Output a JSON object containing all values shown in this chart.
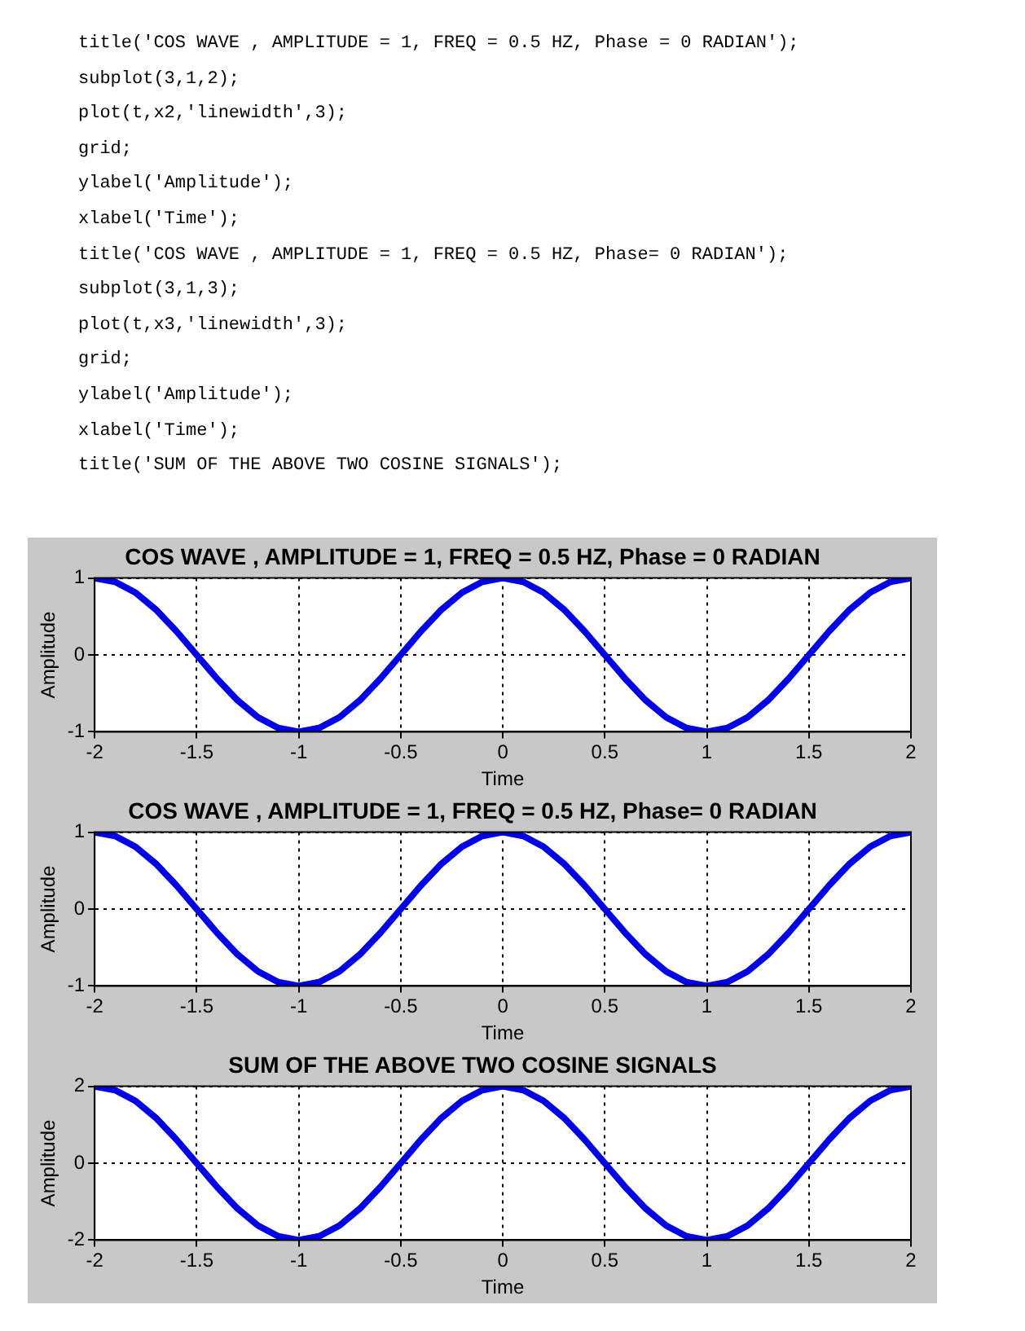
{
  "chart_data": [
    {
      "type": "line",
      "title": "COS WAVE , AMPLITUDE = 1, FREQ = 0.5 HZ, Phase = 0 RADIAN",
      "xlabel": "Time",
      "ylabel": "Amplitude",
      "annotations": [
        "title('COS WAVE , AMPLITUDE = 1, FREQ = 0.5 HZ, Phase = 0 RADIAN');",
        "subplot(3,1,2);",
        "plot(t,x2,'linewidth',3);",
        "grid;",
        "ylabel('Amplitude');",
        "xlabel('Time');",
        "title('COS WAVE , AMPLITUDE = 1, FREQ = 0.5 HZ, Phase= 0 RADIAN');",
        "subplot(3,1,3);",
        "plot(t,x3,'linewidth',3);",
        "grid;",
        "ylabel('Amplitude');",
        "xlabel('Time');",
        "title('SUM OF THE ABOVE TWO COSINE SIGNALS');"
      ],
      "x": [
        -2,
        -1.9,
        -1.8,
        -1.7,
        -1.6,
        -1.5,
        -1.4,
        -1.3,
        -1.2,
        -1.1,
        -1,
        -0.9,
        -0.8,
        -0.7,
        -0.6,
        -0.5,
        -0.4,
        -0.3,
        -0.2,
        -0.1,
        0,
        0.1,
        0.2,
        0.3,
        0.4,
        0.5,
        0.6,
        0.7,
        0.8,
        0.9,
        1,
        1.1,
        1.2,
        1.3,
        1.4,
        1.5,
        1.6,
        1.7,
        1.8,
        1.9,
        2
      ],
      "series": [
        {
          "color": "#0000e6",
          "values": [
            1,
            0.95,
            0.81,
            0.59,
            0.31,
            0,
            -0.31,
            -0.59,
            -0.81,
            -0.95,
            -1,
            -0.95,
            -0.81,
            -0.59,
            -0.31,
            0,
            0.31,
            0.59,
            0.81,
            0.95,
            1,
            0.95,
            0.81,
            0.59,
            0.31,
            0,
            -0.31,
            -0.59,
            -0.81,
            -0.95,
            -1,
            -0.95,
            -0.81,
            -0.59,
            -0.31,
            0,
            0.31,
            0.59,
            0.81,
            0.95,
            1
          ]
        }
      ],
      "xlim": [
        -2,
        2
      ],
      "xticks": [
        -2,
        -1.5,
        -1,
        -0.5,
        0,
        0.5,
        1,
        1.5,
        2
      ],
      "ylim": [
        -1,
        1
      ],
      "yticks": [
        -1,
        0,
        1
      ],
      "grid": true,
      "line_style": "solid"
    },
    {
      "type": "line",
      "title": "COS WAVE , AMPLITUDE = 1, FREQ = 0.5 HZ, Phase= 0 RADIAN",
      "xlabel": "Time",
      "ylabel": "Amplitude",
      "x": [
        -2,
        -1.9,
        -1.8,
        -1.7,
        -1.6,
        -1.5,
        -1.4,
        -1.3,
        -1.2,
        -1.1,
        -1,
        -0.9,
        -0.8,
        -0.7,
        -0.6,
        -0.5,
        -0.4,
        -0.3,
        -0.2,
        -0.1,
        0,
        0.1,
        0.2,
        0.3,
        0.4,
        0.5,
        0.6,
        0.7,
        0.8,
        0.9,
        1,
        1.1,
        1.2,
        1.3,
        1.4,
        1.5,
        1.6,
        1.7,
        1.8,
        1.9,
        2
      ],
      "series": [
        {
          "color": "#0000e6",
          "values": [
            1,
            0.95,
            0.81,
            0.59,
            0.31,
            0,
            -0.31,
            -0.59,
            -0.81,
            -0.95,
            -1,
            -0.95,
            -0.81,
            -0.59,
            -0.31,
            0,
            0.31,
            0.59,
            0.81,
            0.95,
            1,
            0.95,
            0.81,
            0.59,
            0.31,
            0,
            -0.31,
            -0.59,
            -0.81,
            -0.95,
            -1,
            -0.95,
            -0.81,
            -0.59,
            -0.31,
            0,
            0.31,
            0.59,
            0.81,
            0.95,
            1
          ]
        }
      ],
      "xlim": [
        -2,
        2
      ],
      "xticks": [
        -2,
        -1.5,
        -1,
        -0.5,
        0,
        0.5,
        1,
        1.5,
        2
      ],
      "ylim": [
        -1,
        1
      ],
      "yticks": [
        -1,
        0,
        1
      ],
      "grid": true,
      "line_style": "solid"
    },
    {
      "type": "line",
      "title": "SUM OF THE ABOVE TWO COSINE SIGNALS",
      "xlabel": "Time",
      "ylabel": "Amplitude",
      "x": [
        -2,
        -1.9,
        -1.8,
        -1.7,
        -1.6,
        -1.5,
        -1.4,
        -1.3,
        -1.2,
        -1.1,
        -1,
        -0.9,
        -0.8,
        -0.7,
        -0.6,
        -0.5,
        -0.4,
        -0.3,
        -0.2,
        -0.1,
        0,
        0.1,
        0.2,
        0.3,
        0.4,
        0.5,
        0.6,
        0.7,
        0.8,
        0.9,
        1,
        1.1,
        1.2,
        1.3,
        1.4,
        1.5,
        1.6,
        1.7,
        1.8,
        1.9,
        2
      ],
      "series": [
        {
          "color": "#0000e6",
          "values": [
            2,
            1.9,
            1.62,
            1.18,
            0.62,
            0,
            -0.62,
            -1.18,
            -1.62,
            -1.9,
            -2,
            -1.9,
            -1.62,
            -1.18,
            -0.62,
            0,
            0.62,
            1.18,
            1.62,
            1.9,
            2,
            1.9,
            1.62,
            1.18,
            0.62,
            0,
            -0.62,
            -1.18,
            -1.62,
            -1.9,
            -2,
            -1.9,
            -1.62,
            -1.18,
            -0.62,
            0,
            0.62,
            1.18,
            1.62,
            1.9,
            2
          ]
        }
      ],
      "xlim": [
        -2,
        2
      ],
      "xticks": [
        -2,
        -1.5,
        -1,
        -0.5,
        0,
        0.5,
        1,
        1.5,
        2
      ],
      "ylim": [
        -2,
        2
      ],
      "yticks": [
        -2,
        0,
        2
      ],
      "grid": true,
      "line_style": "solid"
    }
  ]
}
